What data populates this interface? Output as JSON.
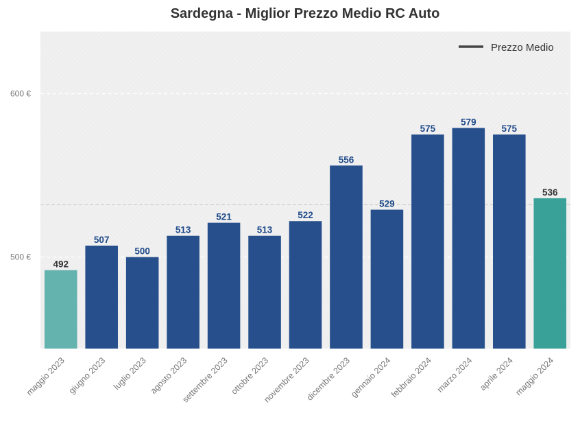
{
  "chart_data": {
    "type": "bar",
    "title": "Sardegna - Miglior Prezzo Medio RC Auto",
    "xlabel": "",
    "ylabel": "",
    "categories": [
      "maggio 2023",
      "giugno 2023",
      "luglio 2023",
      "agosto 2023",
      "settembre 2023",
      "ottobre 2023",
      "novembre 2023",
      "dicembre 2023",
      "gennaio 2024",
      "febbraio 2024",
      "marzo 2024",
      "aprile 2024",
      "maggio 2024"
    ],
    "values": [
      492,
      507,
      500,
      513,
      521,
      513,
      522,
      556,
      529,
      575,
      579,
      575,
      536
    ],
    "data_labels": [
      "492",
      "507",
      "500",
      "513",
      "521",
      "513",
      "522",
      "556",
      "529",
      "575",
      "579",
      "575",
      "536"
    ],
    "bar_colors": [
      "#65b3ae",
      "#264f8b",
      "#264f8b",
      "#264f8b",
      "#264f8b",
      "#264f8b",
      "#264f8b",
      "#264f8b",
      "#264f8b",
      "#264f8b",
      "#264f8b",
      "#264f8b",
      "#3aa198"
    ],
    "label_colors": [
      "#333333",
      "#1f4a8a",
      "#1f4a8a",
      "#1f4a8a",
      "#1f4a8a",
      "#1f4a8a",
      "#1f4a8a",
      "#1f4a8a",
      "#1f4a8a",
      "#1f4a8a",
      "#1f4a8a",
      "#1f4a8a",
      "#333333"
    ],
    "ylim": [
      444,
      638
    ],
    "yticks": [
      500,
      600
    ],
    "ytick_labels": [
      "500 €",
      "600 €"
    ],
    "mean_line": 532,
    "legend": {
      "label": "Prezzo Medio",
      "position": "top-right"
    },
    "grid": true,
    "colors": {
      "plot_bg": "#f0f0f0",
      "grid": "#ffffff",
      "mean_line": "#c8c8c8",
      "legend_line": "#444444",
      "title": "#333333",
      "tick_text": "#777777"
    }
  }
}
